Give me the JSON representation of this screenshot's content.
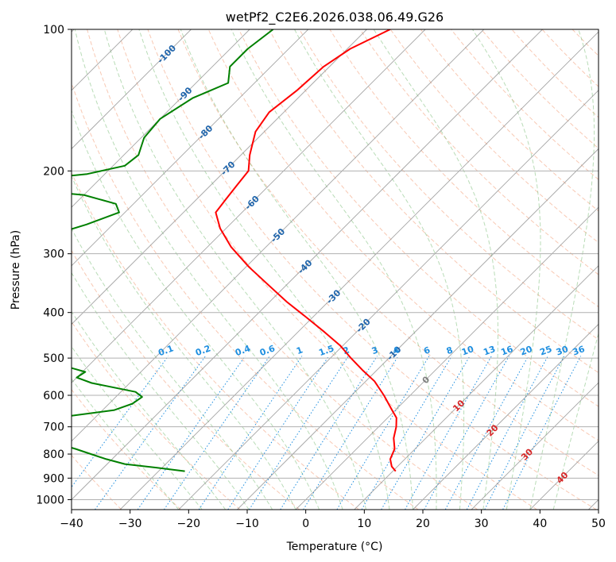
{
  "chart_data": {
    "type": "skew-t",
    "title": "wetPf2_C2E6.2026.038.06.49.G26",
    "xlabel": "Temperature (°C)",
    "ylabel": "Pressure (hPa)",
    "xlim": [
      -40,
      50
    ],
    "ylim": [
      1050,
      100
    ],
    "x_ticks": [
      -40,
      -30,
      -20,
      -10,
      0,
      10,
      20,
      30,
      40,
      50
    ],
    "x_tick_labels": [
      "−40",
      "−30",
      "−20",
      "−10",
      "0",
      "10",
      "20",
      "30",
      "40",
      "50"
    ],
    "y_ticks": [
      100,
      200,
      300,
      400,
      500,
      600,
      700,
      800,
      900,
      1000
    ],
    "y_tick_labels": [
      "100",
      "200",
      "300",
      "400",
      "500",
      "600",
      "700",
      "800",
      "900",
      "1000"
    ],
    "grid": true,
    "colors": {
      "temperature": "#ff0000",
      "dewpoint": "#008000",
      "isotherm": "#888888",
      "dry_adiabat": "#f4a582",
      "moist_adiabat": "#7fbf7b",
      "mixing_ratio": "#1f8fe0",
      "isotherm_label_cold": "#2166ac",
      "isotherm_label_warm": "#d62728",
      "isotherm_label_zero": "#808080"
    },
    "temperature_profile": [
      {
        "p": 100,
        "t": -66.0
      },
      {
        "p": 110,
        "t": -69.5
      },
      {
        "p": 120,
        "t": -71.0
      },
      {
        "p": 135,
        "t": -71.5
      },
      {
        "p": 150,
        "t": -72.5
      },
      {
        "p": 165,
        "t": -71.5
      },
      {
        "p": 185,
        "t": -68.5
      },
      {
        "p": 200,
        "t": -66.0
      },
      {
        "p": 215,
        "t": -65.5
      },
      {
        "p": 230,
        "t": -65.0
      },
      {
        "p": 245,
        "t": -64.5
      },
      {
        "p": 265,
        "t": -61.0
      },
      {
        "p": 290,
        "t": -56.0
      },
      {
        "p": 320,
        "t": -49.5
      },
      {
        "p": 350,
        "t": -43.0
      },
      {
        "p": 380,
        "t": -37.0
      },
      {
        "p": 410,
        "t": -31.0
      },
      {
        "p": 440,
        "t": -25.5
      },
      {
        "p": 470,
        "t": -20.5
      },
      {
        "p": 500,
        "t": -16.5
      },
      {
        "p": 530,
        "t": -12.5
      },
      {
        "p": 560,
        "t": -8.5
      },
      {
        "p": 600,
        "t": -4.5
      },
      {
        "p": 640,
        "t": -1.0
      },
      {
        "p": 670,
        "t": 1.5
      },
      {
        "p": 700,
        "t": 3.0
      },
      {
        "p": 740,
        "t": 4.5
      },
      {
        "p": 780,
        "t": 6.5
      },
      {
        "p": 820,
        "t": 7.5
      },
      {
        "p": 850,
        "t": 9.0
      },
      {
        "p": 870,
        "t": 10.5
      }
    ],
    "dewpoint_profile": [
      {
        "p": 100,
        "t": -86.0
      },
      {
        "p": 110,
        "t": -87.0
      },
      {
        "p": 120,
        "t": -87.0
      },
      {
        "p": 130,
        "t": -84.5
      },
      {
        "p": 140,
        "t": -88.0
      },
      {
        "p": 155,
        "t": -90.0
      },
      {
        "p": 170,
        "t": -89.5
      },
      {
        "p": 185,
        "t": -87.5
      },
      {
        "p": 195,
        "t": -88.0
      },
      {
        "p": 203,
        "t": -93.0
      },
      {
        "p": 210,
        "t": -103.0
      },
      {
        "p": 218,
        "t": -104.0
      },
      {
        "p": 225,
        "t": -90.0
      },
      {
        "p": 235,
        "t": -83.0
      },
      {
        "p": 245,
        "t": -81.0
      },
      {
        "p": 260,
        "t": -84.5
      },
      {
        "p": 275,
        "t": -89.0
      },
      {
        "p": 288,
        "t": -102.5
      },
      {
        "p": 300,
        "t": -104.0
      },
      {
        "p": 320,
        "t": -106.0
      },
      {
        "p": 340,
        "t": -108.0
      },
      {
        "p": 360,
        "t": -108.5
      },
      {
        "p": 380,
        "t": -110.0
      },
      {
        "p": 400,
        "t": -109.0
      },
      {
        "p": 415,
        "t": -110.5
      },
      {
        "p": 440,
        "t": -113.0
      },
      {
        "p": 470,
        "t": -114.5
      },
      {
        "p": 490,
        "t": -104.0
      },
      {
        "p": 505,
        "t": -77.0
      },
      {
        "p": 520,
        "t": -64.0
      },
      {
        "p": 535,
        "t": -59.5
      },
      {
        "p": 550,
        "t": -60.0
      },
      {
        "p": 565,
        "t": -56.5
      },
      {
        "p": 590,
        "t": -47.5
      },
      {
        "p": 605,
        "t": -45.5
      },
      {
        "p": 625,
        "t": -46.0
      },
      {
        "p": 645,
        "t": -48.0
      },
      {
        "p": 665,
        "t": -55.0
      },
      {
        "p": 685,
        "t": -65.0
      },
      {
        "p": 700,
        "t": -63.0
      },
      {
        "p": 720,
        "t": -60.0
      },
      {
        "p": 740,
        "t": -58.5
      },
      {
        "p": 760,
        "t": -52.0
      },
      {
        "p": 780,
        "t": -48.0
      },
      {
        "p": 800,
        "t": -44.5
      },
      {
        "p": 820,
        "t": -41.0
      },
      {
        "p": 840,
        "t": -37.0
      },
      {
        "p": 855,
        "t": -31.0
      },
      {
        "p": 870,
        "t": -25.5
      }
    ],
    "isotherm_labels": [
      {
        "text": "-100",
        "value": -100
      },
      {
        "text": "-90",
        "value": -90
      },
      {
        "text": "-80",
        "value": -80
      },
      {
        "text": "-70",
        "value": -70
      },
      {
        "text": "-60",
        "value": -60
      },
      {
        "text": "-50",
        "value": -50
      },
      {
        "text": "-40",
        "value": -40
      },
      {
        "text": "-30",
        "value": -30
      },
      {
        "text": "-20",
        "value": -20
      },
      {
        "text": "-10",
        "value": -10
      },
      {
        "text": "0",
        "value": 0
      },
      {
        "text": "10",
        "value": 10
      },
      {
        "text": "20",
        "value": 20
      },
      {
        "text": "30",
        "value": 30
      },
      {
        "text": "40",
        "value": 40
      }
    ],
    "mixing_ratio_labels": [
      "0.1",
      "0.2",
      "0.4",
      "0.6",
      "1",
      "1.5",
      "2",
      "3",
      "4",
      "6",
      "8",
      "10",
      "13",
      "16",
      "20",
      "25",
      "30",
      "36"
    ],
    "mixing_ratio_values": [
      0.1,
      0.2,
      0.4,
      0.6,
      1,
      1.5,
      2,
      3,
      4,
      6,
      8,
      10,
      13,
      16,
      20,
      25,
      30,
      36
    ]
  }
}
